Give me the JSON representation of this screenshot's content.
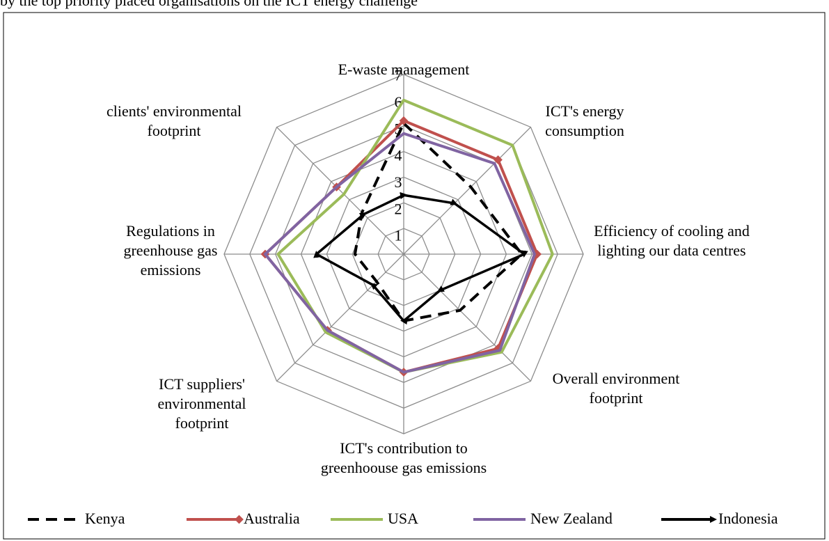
{
  "caption": "by the top priority placed organisations on the ICT energy challenge",
  "chart_data": {
    "type": "radar",
    "categories": [
      "E-waste management",
      "ICT's energy consumption",
      "Efficiency of cooling and lighting our data centres",
      "Overall environment footprint",
      "ICT's contribution to greenhoouse gas emissions",
      "ICT suppliers' environmental footprint",
      "Regulations in greenhouse gas emissions",
      "clients' environmental footprint"
    ],
    "ylim": [
      0,
      7
    ],
    "yticks": [
      1,
      2,
      3,
      4,
      5,
      6,
      7
    ],
    "grid": true,
    "legend": "bottom",
    "series": [
      {
        "name": "Kenya",
        "color": "#000000",
        "style": "dashed",
        "values": [
          5.1,
          3.7,
          4.6,
          3.1,
          2.6,
          1.5,
          1.9,
          2.3
        ]
      },
      {
        "name": "Australia",
        "color": "#c0504d",
        "marker": "diamond",
        "values": [
          5.2,
          5.2,
          5.2,
          5.2,
          4.6,
          4.2,
          5.4,
          3.7
        ]
      },
      {
        "name": "USA",
        "color": "#9bbb59",
        "values": [
          6.0,
          6.0,
          5.8,
          5.4,
          4.6,
          4.3,
          4.9,
          3.3
        ]
      },
      {
        "name": "New Zealand",
        "color": "#8064a2",
        "values": [
          4.7,
          5.0,
          5.1,
          5.3,
          4.6,
          4.2,
          5.4,
          3.7
        ]
      },
      {
        "name": "Indonesia",
        "color": "#000000",
        "marker": "arrow",
        "values": [
          2.3,
          2.8,
          4.7,
          2.0,
          2.6,
          1.7,
          3.4,
          2.2
        ]
      }
    ]
  }
}
